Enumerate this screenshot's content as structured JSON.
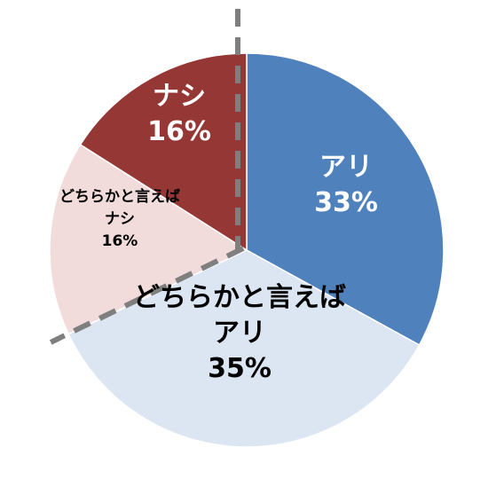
{
  "chart_data": {
    "type": "pie",
    "start_angle_deg": 0,
    "direction": "clockwise",
    "slices": [
      {
        "lines": [
          "アリ",
          "33%"
        ],
        "value": 33,
        "color": "#4f81bd",
        "text_color": "#ffffff"
      },
      {
        "lines": [
          "どちらかと言えば",
          "アリ",
          "35%"
        ],
        "value": 35,
        "color": "#dce6f2",
        "text_color": "#000000"
      },
      {
        "lines": [
          "どちらかと言えば",
          "ナシ",
          "16%"
        ],
        "value": 16,
        "color": "#f2dcdb",
        "text_color": "#000000"
      },
      {
        "lines": [
          "ナシ",
          "16%"
        ],
        "value": 16,
        "color": "#953735",
        "text_color": "#ffffff"
      }
    ],
    "divider": {
      "style": "dashed",
      "color": "#7f7f7f"
    }
  }
}
